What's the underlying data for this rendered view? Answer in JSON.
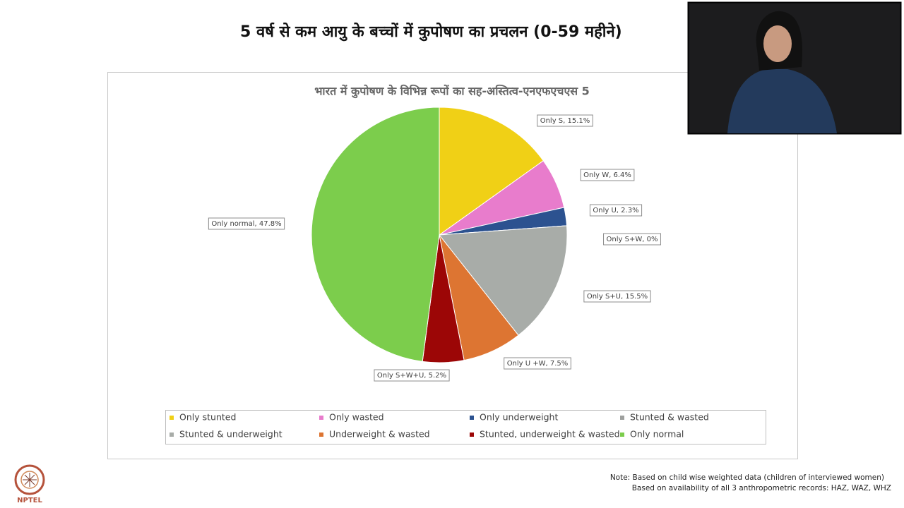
{
  "slide_title": "5 वर्ष से कम आयु के बच्चों में कुपोषण का प्रचलन (0-59 महीने)",
  "chart_data": {
    "type": "pie",
    "title": "भारत में कुपोषण के विभिन्न रूपों का सह-अस्तित्व-एनएफएचएस 5",
    "categories": [
      "Only stunted",
      "Only wasted",
      "Only underweight",
      "Stunted & wasted",
      "Stunted & underweight",
      "Underweight & wasted",
      "Stunted, underweight & wasted",
      "Only normal"
    ],
    "values": [
      15.1,
      6.4,
      2.3,
      0,
      15.5,
      7.5,
      5.2,
      47.8
    ],
    "value_labels": [
      "Only S, 15.1%",
      "Only W, 6.4%",
      "Only U, 2.3%",
      "Only S+W, 0%",
      "Only S+U, 15.5%",
      "Only U +W, 7.5%",
      "Only S+W+U, 5.2%",
      "Only normal, 47.8%"
    ],
    "colors": [
      "#f0d016",
      "#e87ccc",
      "#2c5290",
      "#9ea09e",
      "#a8aca8",
      "#dd7532",
      "#9c0606",
      "#7ccd4c"
    ]
  },
  "notes": [
    "Note: Based on child wise weighted data (children of interviewed women)",
    "Based on availability of all 3 anthropometric records: HAZ, WAZ, WHZ"
  ],
  "logo": "NPTEL"
}
